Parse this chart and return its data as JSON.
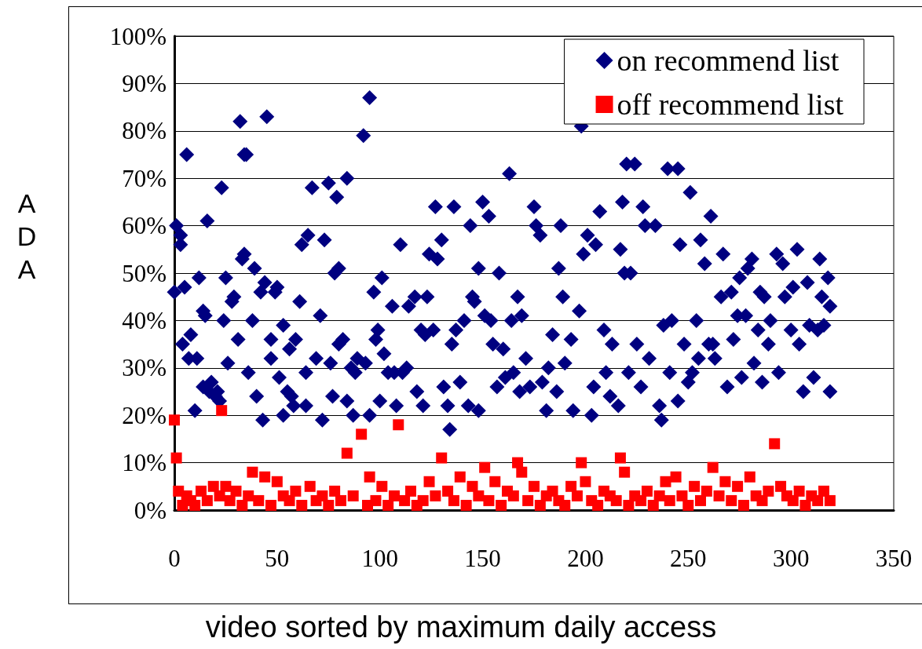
{
  "chart_data": {
    "type": "scatter",
    "xlabel": "video sorted by maximum daily access",
    "ylabel": "ADA",
    "xlim": [
      0,
      350
    ],
    "xticks": [
      0,
      50,
      100,
      150,
      200,
      250,
      300,
      350
    ],
    "ylim": [
      0,
      100
    ],
    "yticks": [
      {
        "value": 0,
        "label": "0%"
      },
      {
        "value": 10,
        "label": "10%"
      },
      {
        "value": 20,
        "label": "20%"
      },
      {
        "value": 30,
        "label": "30%"
      },
      {
        "value": 40,
        "label": "40%"
      },
      {
        "value": 50,
        "label": "50%"
      },
      {
        "value": 60,
        "label": "60%"
      },
      {
        "value": 70,
        "label": "70%"
      },
      {
        "value": 80,
        "label": "80%"
      },
      {
        "value": 90,
        "label": "90%"
      },
      {
        "value": 100,
        "label": "100%"
      }
    ],
    "grid": "y",
    "legend": "top right",
    "series": [
      {
        "name": "on recommend list",
        "color": "#000080",
        "marker": "diamond",
        "x": [
          0,
          1,
          3,
          3,
          5,
          4,
          6,
          7,
          8,
          10,
          11,
          12,
          14,
          15,
          14,
          16,
          17,
          18,
          20,
          21,
          22,
          23,
          25,
          24,
          26,
          28,
          29,
          31,
          32,
          34,
          35,
          33,
          34,
          36,
          38,
          39,
          40,
          43,
          42,
          44,
          45,
          47,
          47,
          49,
          50,
          51,
          53,
          53,
          55,
          56,
          57,
          58,
          59,
          61,
          62,
          64,
          64,
          65,
          67,
          69,
          71,
          72,
          73,
          75,
          76,
          77,
          78,
          79,
          80,
          80,
          82,
          84,
          84,
          86,
          88,
          89,
          87,
          92,
          93,
          95,
          95,
          97,
          98,
          99,
          100,
          101,
          102,
          104,
          106,
          107,
          108,
          110,
          111,
          113,
          114,
          117,
          118,
          120,
          121,
          122,
          123,
          124,
          126,
          127,
          128,
          130,
          131,
          133,
          134,
          135,
          136,
          137,
          139,
          141,
          143,
          144,
          145,
          146,
          148,
          148,
          150,
          151,
          153,
          154,
          155,
          157,
          158,
          160,
          161,
          163,
          164,
          165,
          167,
          168,
          169,
          171,
          173,
          175,
          176,
          178,
          179,
          181,
          182,
          184,
          186,
          187,
          188,
          189,
          190,
          193,
          194,
          197,
          198,
          199,
          201,
          203,
          204,
          205,
          207,
          209,
          210,
          212,
          213,
          216,
          217,
          218,
          219,
          220,
          221,
          222,
          224,
          225,
          227,
          228,
          229,
          231,
          234,
          236,
          237,
          240,
          238,
          241,
          242,
          245,
          245,
          246,
          248,
          250,
          251,
          252,
          254,
          255,
          256,
          258,
          260,
          261,
          262,
          263,
          266,
          267,
          269,
          271,
          272,
          274,
          275,
          276,
          278,
          279,
          281,
          282,
          284,
          285,
          286,
          287,
          289,
          290,
          293,
          294,
          296,
          297,
          300,
          301,
          303,
          304,
          306,
          308,
          309,
          311,
          313,
          314,
          315,
          316,
          318,
          319,
          319
        ],
        "values": [
          46,
          60,
          58,
          56,
          47,
          35,
          75,
          32,
          37,
          21,
          32,
          49,
          42,
          41,
          26,
          61,
          25,
          27,
          24,
          25,
          23,
          68,
          49,
          40,
          31,
          44,
          45,
          36,
          82,
          75,
          75,
          53,
          54,
          29,
          40,
          51,
          24,
          19,
          46,
          48,
          83,
          36,
          32,
          46,
          47,
          28,
          20,
          39,
          25,
          34,
          24,
          22,
          36,
          44,
          56,
          22,
          29,
          58,
          68,
          32,
          41,
          19,
          57,
          69,
          31,
          24,
          50,
          66,
          51,
          35,
          36,
          70,
          23,
          30,
          29,
          32,
          20,
          79,
          31,
          87,
          20,
          46,
          36,
          38,
          23,
          49,
          33,
          29,
          43,
          29,
          22,
          56,
          29,
          30,
          43,
          45,
          25,
          38,
          22,
          37,
          45,
          54,
          38,
          64,
          53,
          57,
          26,
          22,
          17,
          35,
          64,
          38,
          27,
          40,
          22,
          60,
          45,
          44,
          21,
          51,
          65,
          41,
          62,
          40,
          35,
          26,
          50,
          34,
          28,
          71,
          40,
          29,
          45,
          25,
          41,
          32,
          26,
          64,
          60,
          58,
          27,
          21,
          30,
          37,
          25,
          51,
          60,
          45,
          31,
          36,
          21,
          42,
          81,
          54,
          58,
          20,
          26,
          56,
          63,
          38,
          29,
          24,
          35,
          22,
          55,
          65,
          50,
          73,
          29,
          50,
          73,
          35,
          26,
          64,
          60,
          32,
          60,
          22,
          19,
          72,
          39,
          29,
          40,
          72,
          23,
          56,
          35,
          27,
          67,
          29,
          40,
          32,
          57,
          52,
          35,
          62,
          35,
          32,
          45,
          54,
          26,
          46,
          36,
          41,
          49,
          28,
          41,
          51,
          53,
          31,
          38,
          46,
          27,
          45,
          35,
          40,
          54,
          29,
          52,
          45,
          38,
          47,
          55,
          35,
          25,
          48,
          39,
          28,
          38,
          53,
          45,
          39,
          49,
          25,
          43
        ]
      },
      {
        "name": "off recommend list",
        "color": "#ff0000",
        "marker": "square",
        "x": [
          0,
          1,
          2,
          4,
          6,
          8,
          10,
          13,
          16,
          19,
          22,
          23,
          25,
          27,
          30,
          33,
          36,
          38,
          41,
          44,
          47,
          50,
          53,
          56,
          59,
          62,
          66,
          69,
          72,
          75,
          78,
          81,
          84,
          87,
          91,
          94,
          95,
          98,
          101,
          104,
          107,
          109,
          112,
          115,
          118,
          121,
          124,
          127,
          130,
          133,
          136,
          139,
          142,
          145,
          148,
          151,
          153,
          156,
          159,
          162,
          165,
          167,
          169,
          172,
          175,
          178,
          181,
          184,
          187,
          190,
          193,
          196,
          198,
          200,
          203,
          206,
          209,
          212,
          215,
          217,
          219,
          221,
          224,
          227,
          230,
          233,
          236,
          239,
          241,
          244,
          247,
          250,
          253,
          256,
          259,
          262,
          265,
          268,
          271,
          274,
          277,
          280,
          283,
          286,
          289,
          292,
          295,
          298,
          301,
          304,
          307,
          310,
          313,
          316,
          319
        ],
        "values": [
          19,
          11,
          4,
          1,
          3,
          2,
          1,
          4,
          2,
          5,
          3,
          21,
          5,
          2,
          4,
          1,
          3,
          8,
          2,
          7,
          1,
          6,
          3,
          2,
          4,
          1,
          5,
          2,
          3,
          1,
          4,
          2,
          12,
          3,
          16,
          1,
          7,
          2,
          5,
          1,
          3,
          18,
          2,
          4,
          1,
          2,
          6,
          3,
          11,
          4,
          2,
          7,
          1,
          5,
          3,
          9,
          2,
          6,
          1,
          4,
          3,
          10,
          8,
          2,
          5,
          1,
          3,
          4,
          2,
          1,
          5,
          3,
          10,
          6,
          2,
          1,
          4,
          3,
          2,
          11,
          8,
          1,
          3,
          2,
          4,
          1,
          3,
          6,
          2,
          7,
          3,
          1,
          5,
          2,
          4,
          9,
          3,
          6,
          2,
          5,
          1,
          7,
          3,
          2,
          4,
          14,
          5,
          3,
          2,
          4,
          1,
          3,
          2,
          4,
          2
        ]
      }
    ]
  }
}
